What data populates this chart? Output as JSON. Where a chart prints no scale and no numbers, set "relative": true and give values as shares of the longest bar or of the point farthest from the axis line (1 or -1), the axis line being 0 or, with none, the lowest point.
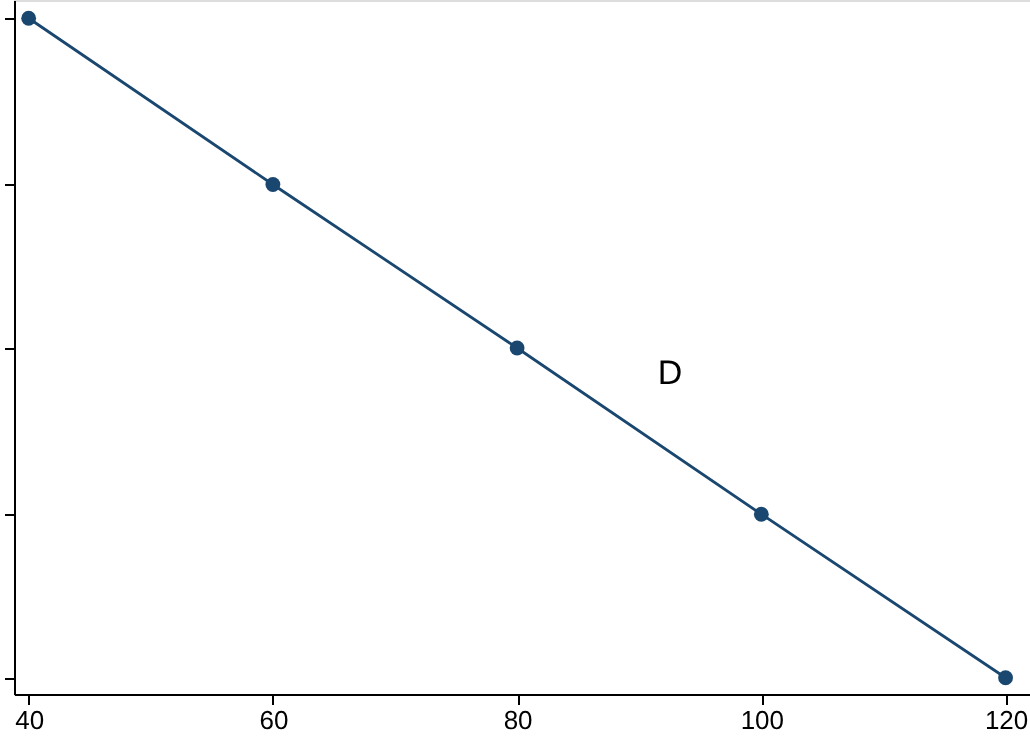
{
  "chart_data": {
    "type": "line",
    "relative": true,
    "x": [
      40,
      60,
      80,
      100,
      120
    ],
    "series": [
      {
        "color": "#1a476f",
        "values": [
          1,
          0.754,
          0.512,
          0.266,
          0.024
        ]
      }
    ],
    "xlim": [
      38.8,
      122
    ],
    "xticks": [
      40,
      60,
      80,
      100,
      120
    ],
    "marker": "circle",
    "line_style": "solid",
    "grid": false,
    "annotations": [
      "D"
    ]
  }
}
